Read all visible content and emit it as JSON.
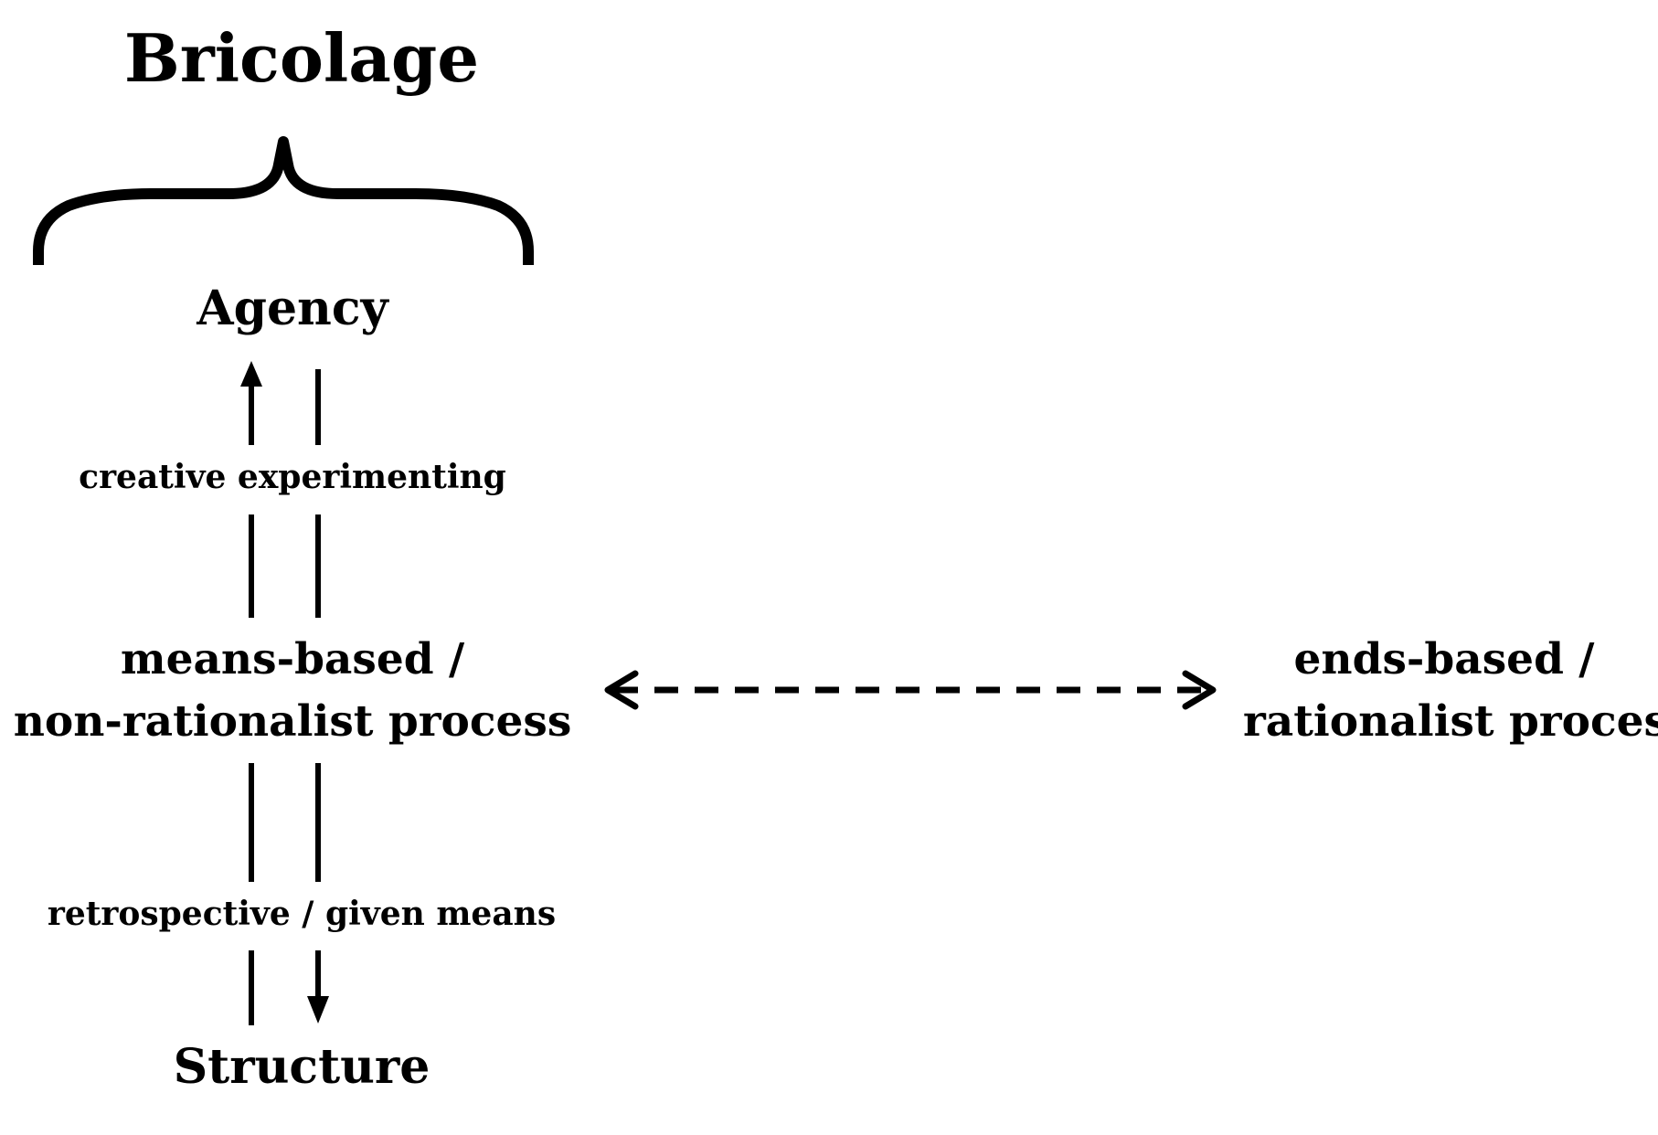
{
  "title": "Bricolage",
  "nodes": {
    "agency": "Agency",
    "means_line1": "means-based /",
    "means_line2": "non-rationalist process",
    "ends_line1": "ends-based /",
    "ends_line2": "rationalist process",
    "structure": "Structure"
  },
  "edges": {
    "upper_label": "creative experimenting",
    "lower_label": "retrospective / given means"
  },
  "colors": {
    "ink": "#000000",
    "background": "#ffffff"
  }
}
